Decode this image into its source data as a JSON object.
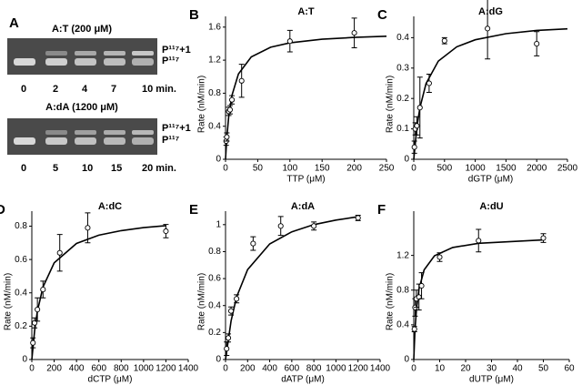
{
  "gel_panel": {
    "panel": "A",
    "gels": [
      {
        "title": "A:T (200 μM)",
        "lanes": [
          "0",
          "2",
          "4",
          "7",
          "10 min."
        ],
        "band_labels": [
          "P¹¹⁷+1",
          "P¹¹⁷"
        ]
      },
      {
        "title": "A:dA (1200 μM)",
        "lanes": [
          "0",
          "5",
          "10",
          "15",
          "20 min."
        ],
        "band_labels": [
          "P¹¹⁷+1",
          "P¹¹⁷"
        ]
      }
    ]
  },
  "chart_data": [
    {
      "type": "scatter",
      "panel": "B",
      "title": "A:T",
      "x_label": "TTP (μM)",
      "y_label": "Rate (nM/min)",
      "x": [
        1,
        2,
        5,
        7,
        10,
        25,
        100,
        200
      ],
      "values": [
        0.22,
        0.27,
        0.58,
        0.6,
        0.72,
        0.95,
        1.43,
        1.53
      ],
      "errors": [
        0.05,
        0.05,
        0.05,
        0.05,
        0.05,
        0.2,
        0.13,
        0.18
      ],
      "curve_x": [
        0,
        2,
        5,
        10,
        20,
        40,
        70,
        100,
        150,
        200,
        250
      ],
      "curve_y": [
        0,
        0.258,
        0.517,
        0.775,
        1.033,
        1.24,
        1.356,
        1.409,
        1.453,
        1.476,
        1.49
      ],
      "xlim": [
        0,
        250
      ],
      "xticks": [
        0,
        50,
        100,
        150,
        200,
        250
      ],
      "ylim": [
        0,
        1.73
      ],
      "yticks": [
        0,
        0.4,
        0.8,
        1.2,
        1.6
      ]
    },
    {
      "type": "scatter",
      "panel": "C",
      "title": "A:dG",
      "x_label": "dGTP (μM)",
      "y_label": "Rate (nM/min)",
      "x": [
        10,
        25,
        50,
        100,
        250,
        500,
        1200,
        2000
      ],
      "values": [
        0.04,
        0.1,
        0.11,
        0.17,
        0.25,
        0.39,
        0.43,
        0.38
      ],
      "errors": [
        0.02,
        0.02,
        0.03,
        0.1,
        0.03,
        0.01,
        0.1,
        0.04
      ],
      "curve_x": [
        0,
        50,
        100,
        200,
        400,
        700,
        1000,
        1500,
        2000,
        2500
      ],
      "curve_y": [
        0,
        0.105,
        0.17,
        0.249,
        0.323,
        0.37,
        0.393,
        0.413,
        0.424,
        0.429
      ],
      "xlim": [
        0,
        2500
      ],
      "xticks": [
        0,
        500,
        1000,
        1500,
        2000,
        2500
      ],
      "ylim": [
        0,
        0.47
      ],
      "yticks": [
        0,
        0.1,
        0.2,
        0.3,
        0.4
      ]
    },
    {
      "type": "scatter",
      "panel": "D",
      "title": "A:dC",
      "x_label": "dCTP (μM)",
      "y_label": "Rate (nM/min)",
      "x": [
        10,
        25,
        50,
        100,
        250,
        500,
        1200
      ],
      "values": [
        0.1,
        0.22,
        0.3,
        0.42,
        0.64,
        0.79,
        0.77
      ],
      "errors": [
        0.03,
        0.03,
        0.07,
        0.05,
        0.11,
        0.09,
        0.04
      ],
      "curve_x": [
        0,
        25,
        50,
        100,
        200,
        400,
        600,
        800,
        1000,
        1200
      ],
      "curve_y": [
        0,
        0.174,
        0.29,
        0.435,
        0.58,
        0.696,
        0.746,
        0.773,
        0.791,
        0.803
      ],
      "xlim": [
        0,
        1400
      ],
      "xticks": [
        0,
        200,
        400,
        600,
        800,
        1000,
        1200,
        1400
      ],
      "ylim": [
        0,
        0.89
      ],
      "yticks": [
        0,
        0.2,
        0.4,
        0.6,
        0.8
      ]
    },
    {
      "type": "scatter",
      "panel": "E",
      "title": "A:dA",
      "x_label": "dATP (μM)",
      "y_label": "Rate (nM/min)",
      "x": [
        10,
        25,
        50,
        100,
        250,
        500,
        800,
        1200
      ],
      "values": [
        0.08,
        0.16,
        0.36,
        0.45,
        0.86,
        0.99,
        0.99,
        1.05
      ],
      "errors": [
        0.05,
        0.03,
        0.03,
        0.03,
        0.05,
        0.07,
        0.03,
        0.02
      ],
      "curve_x": [
        0,
        50,
        100,
        200,
        400,
        600,
        800,
        1000,
        1200
      ],
      "curve_y": [
        0,
        0.286,
        0.462,
        0.667,
        0.857,
        0.947,
        1.0,
        1.034,
        1.059
      ],
      "xlim": [
        0,
        1400
      ],
      "xticks": [
        0,
        200,
        400,
        600,
        800,
        1000,
        1200,
        1400
      ],
      "ylim": [
        0,
        1.1
      ],
      "yticks": [
        0,
        0.2,
        0.4,
        0.6,
        0.8,
        1
      ]
    },
    {
      "type": "scatter",
      "panel": "F",
      "title": "A:dU",
      "x_label": "dUTP (μM)",
      "y_label": "Rate (nM/min)",
      "x": [
        0.25,
        0.5,
        1,
        2,
        3,
        10,
        25,
        50
      ],
      "values": [
        0.35,
        0.6,
        0.7,
        0.72,
        0.85,
        1.18,
        1.37,
        1.4
      ],
      "errors": [
        0.03,
        0.1,
        0.1,
        0.15,
        0.15,
        0.05,
        0.13,
        0.05
      ],
      "curve_x": [
        0,
        0.5,
        1,
        2,
        4,
        8,
        15,
        25,
        50
      ],
      "curve_y": [
        0,
        0.355,
        0.568,
        0.811,
        1.033,
        1.196,
        1.291,
        1.34,
        1.379
      ],
      "xlim": [
        0,
        60
      ],
      "xticks": [
        0,
        10,
        20,
        30,
        40,
        50,
        60
      ],
      "ylim": [
        0,
        1.71
      ],
      "yticks": [
        0,
        0.4,
        0.8,
        1.2
      ]
    }
  ]
}
